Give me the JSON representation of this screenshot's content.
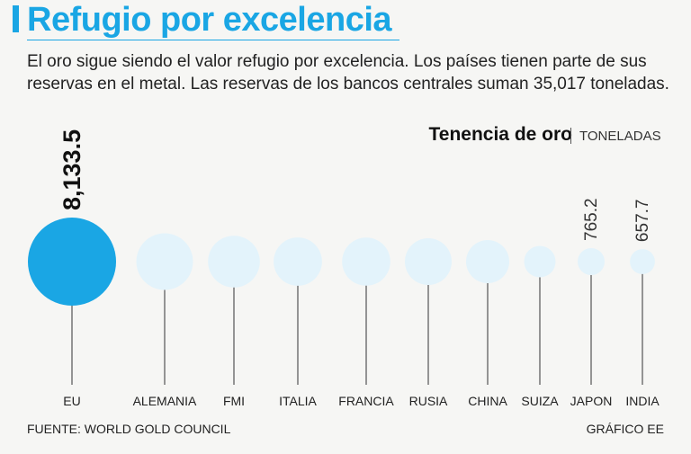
{
  "header": {
    "title": "Refugio por excelencia",
    "subtitle": "El oro sigue siendo el valor refugio por excelencia. Los países tienen parte de sus reservas en el metal. Las reservas de los bancos centrales suman 35,017  toneladas."
  },
  "legend": {
    "title": "Tenencia de oro",
    "unit": "TONELADAS"
  },
  "footer": {
    "source": "FUENTE: WORLD GOLD COUNCIL",
    "credit": "GRÁFICO EE"
  },
  "colors": {
    "accent": "#1aa6e4",
    "bubble_highlight": "#1aa6e4",
    "bubble_default": "#e3f3fb",
    "stem": "#333333"
  },
  "chart_data": {
    "type": "bubble",
    "categories": [
      "EU",
      "ALEMANIA",
      "FMI",
      "ITALIA",
      "FRANCIA",
      "RUSIA",
      "CHINA",
      "SUIZA",
      "JAPON",
      "INDIA"
    ],
    "values": [
      8133.5,
      3359.1,
      2814.0,
      2451.8,
      2436.2,
      2298.5,
      1948.3,
      1040.0,
      765.2,
      657.7
    ],
    "value_labels": [
      "8,133.5",
      "",
      "",
      "",
      "",
      "",
      "",
      "",
      "765.2",
      "657.7"
    ],
    "highlight": "EU"
  }
}
